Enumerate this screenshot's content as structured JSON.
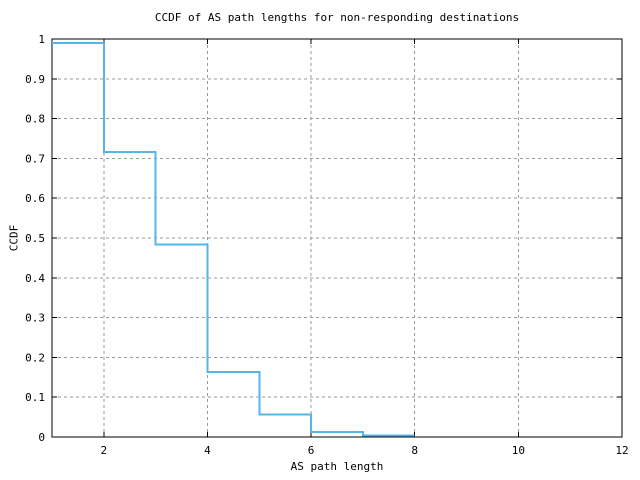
{
  "chart_data": {
    "type": "line",
    "subtype": "step-ccdf",
    "title": "CCDF of AS path lengths for non-responding destinations",
    "xlabel": "AS path length",
    "ylabel": "CCDF",
    "xlim": [
      1,
      12
    ],
    "ylim": [
      0,
      1
    ],
    "x_ticks": [
      2,
      4,
      6,
      8,
      10,
      12
    ],
    "x_tick_labels": [
      "2",
      "4",
      "6",
      "8",
      "10",
      "12"
    ],
    "y_ticks": [
      0,
      0.1,
      0.2,
      0.3,
      0.4,
      0.5,
      0.6,
      0.7,
      0.8,
      0.9,
      1
    ],
    "y_tick_labels": [
      "0",
      "0.1",
      "0.2",
      "0.3",
      "0.4",
      "0.5",
      "0.6",
      "0.7",
      "0.8",
      "0.9",
      "1"
    ],
    "grid": true,
    "legend": "none",
    "colors": {
      "line": "#56b4e9",
      "grid": "#999999",
      "axis": "#000000",
      "background": "#ffffff"
    },
    "series": [
      {
        "name": "ccdf-as-path-length",
        "steps": [
          {
            "x_start": 1,
            "x_end": 2,
            "y": 0.99
          },
          {
            "x_start": 2,
            "x_end": 3,
            "y": 0.716
          },
          {
            "x_start": 3,
            "x_end": 4,
            "y": 0.484
          },
          {
            "x_start": 4,
            "x_end": 5,
            "y": 0.163
          },
          {
            "x_start": 5,
            "x_end": 6,
            "y": 0.056
          },
          {
            "x_start": 6,
            "x_end": 7,
            "y": 0.013
          },
          {
            "x_start": 7,
            "x_end": 8,
            "y": 0.004
          }
        ]
      }
    ]
  }
}
